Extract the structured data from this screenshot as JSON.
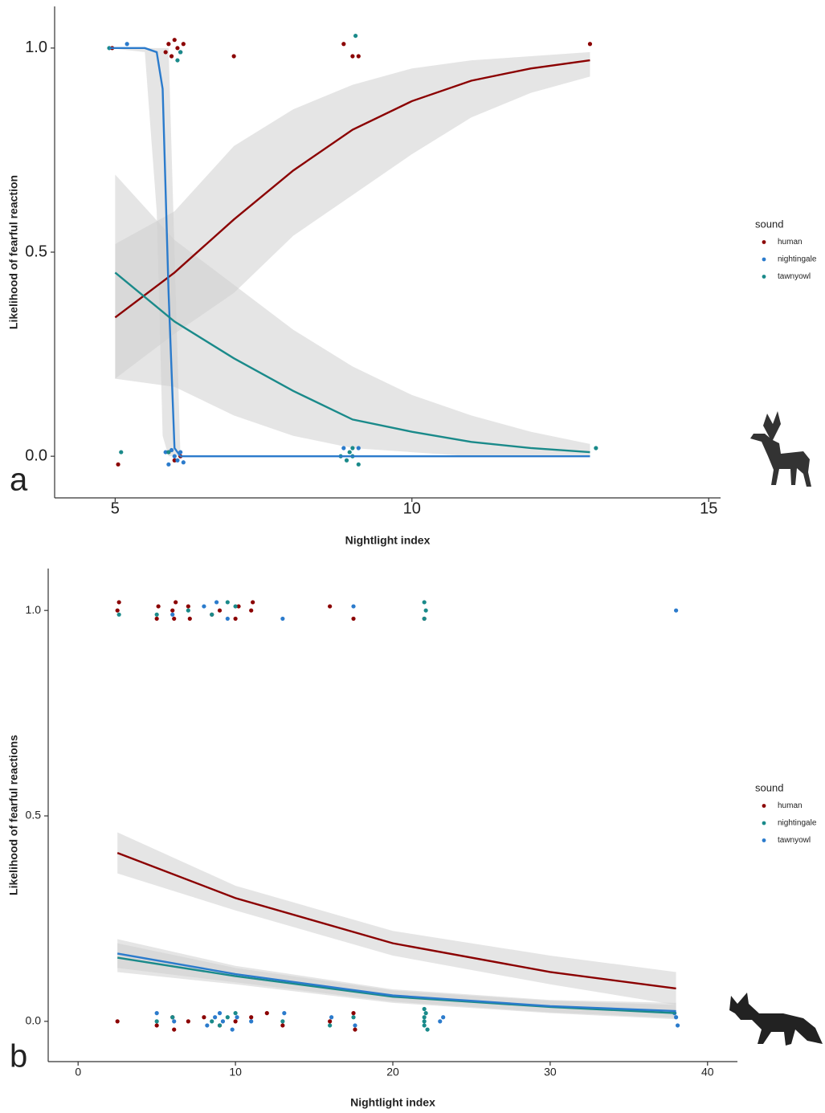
{
  "chart_data": [
    {
      "type": "line",
      "panel_label": "a",
      "x_label": "Nightlight index",
      "y_label": "Likelihood of fearful reaction",
      "legend_title": "sound",
      "xlim": [
        3.98,
        15.2
      ],
      "ylim": [
        -0.102,
        1.102
      ],
      "xticks": [
        5,
        10,
        15
      ],
      "yticks": [
        {
          "value": 0,
          "label": "0.0"
        },
        {
          "value": 0.5,
          "label": "0.5"
        },
        {
          "value": 1,
          "label": "1.0"
        }
      ],
      "series": [
        {
          "name": "human",
          "color": "#8b0000",
          "x": [
            5,
            6,
            7,
            8,
            9,
            10,
            11,
            12,
            13
          ],
          "values": [
            0.34,
            0.45,
            0.58,
            0.7,
            0.8,
            0.87,
            0.92,
            0.95,
            0.97
          ],
          "lower": [
            0.19,
            0.3,
            0.4,
            0.54,
            0.64,
            0.74,
            0.83,
            0.89,
            0.93
          ],
          "upper": [
            0.52,
            0.6,
            0.76,
            0.85,
            0.91,
            0.95,
            0.97,
            0.98,
            0.99
          ],
          "points_x": [
            4.95,
            5.05,
            5.85,
            5.9,
            5.95,
            6.0,
            6.05,
            6.1,
            6.15,
            7.0,
            8.85,
            9.0,
            9.1,
            13.0,
            5.9,
            6.0,
            6.1
          ],
          "points_y": [
            1.0,
            -0.02,
            0.99,
            1.01,
            0.98,
            1.02,
            1.0,
            0.99,
            1.01,
            0.98,
            1.01,
            0.98,
            0.98,
            1.01,
            0.01,
            -0.01,
            0.0
          ]
        },
        {
          "name": "nightingale",
          "color": "#2b7bcc",
          "x": [
            4.9,
            5.5,
            5.7,
            5.8,
            5.9,
            6.0,
            6.1,
            13
          ],
          "values": [
            1,
            1,
            0.99,
            0.9,
            0.4,
            0.02,
            0,
            0
          ],
          "lower": [
            1,
            0.99,
            0.6,
            0.05,
            0,
            0,
            0,
            0
          ],
          "upper": [
            1,
            1,
            1,
            1,
            1,
            0.5,
            0,
            0
          ],
          "points_x": [
            5.2,
            5.85,
            5.9,
            6.0,
            6.05,
            6.1,
            6.15,
            5.95,
            8.85,
            9.1,
            6.1
          ],
          "points_y": [
            1.01,
            0.01,
            -0.02,
            0.0,
            -0.01,
            0.01,
            -0.015,
            0.015,
            0.02,
            0.02,
            0.99
          ]
        },
        {
          "name": "tawnyowl",
          "color": "#1a8a8a",
          "x": [
            5,
            6,
            7,
            8,
            9,
            10,
            11,
            12,
            13
          ],
          "values": [
            0.45,
            0.33,
            0.24,
            0.16,
            0.09,
            0.06,
            0.035,
            0.02,
            0.01
          ],
          "lower": [
            0.19,
            0.17,
            0.1,
            0.05,
            0.02,
            0.01,
            0,
            0,
            0
          ],
          "upper": [
            0.69,
            0.53,
            0.42,
            0.31,
            0.22,
            0.15,
            0.1,
            0.06,
            0.03
          ],
          "points_x": [
            4.9,
            5.1,
            5.9,
            6.05,
            6.1,
            8.8,
            8.9,
            9.0,
            9.05,
            9.1,
            8.95,
            13.1,
            9.0
          ],
          "points_y": [
            1.0,
            0.01,
            0.01,
            0.97,
            0.99,
            0.0,
            -0.01,
            0.02,
            1.03,
            -0.02,
            0.01,
            0.02,
            0.0
          ]
        }
      ]
    },
    {
      "type": "line",
      "panel_label": "b",
      "x_label": "Nightlight index",
      "y_label": "Likelihood of fearful reactions",
      "legend_title": "sound",
      "xlim": [
        -1.9,
        41.9
      ],
      "ylim": [
        -0.098,
        1.102
      ],
      "xticks": [
        0,
        10,
        20,
        30,
        40
      ],
      "yticks": [
        {
          "value": 0,
          "label": "0.0"
        },
        {
          "value": 0.5,
          "label": "0.5"
        },
        {
          "value": 1,
          "label": "1.0"
        }
      ],
      "series": [
        {
          "name": "human",
          "color": "#8b0000",
          "x": [
            2.5,
            10,
            20,
            30,
            38
          ],
          "values": [
            0.41,
            0.3,
            0.19,
            0.12,
            0.08
          ],
          "lower": [
            0.36,
            0.27,
            0.16,
            0.09,
            0.04
          ],
          "upper": [
            0.46,
            0.33,
            0.22,
            0.16,
            0.12
          ],
          "points_x": [
            2.5,
            2.6,
            5,
            5.1,
            6,
            6.1,
            6.2,
            7,
            7.1,
            8.5,
            9,
            10,
            10.2,
            11,
            11.1,
            16,
            17.5,
            22,
            2.5,
            5,
            6,
            6.1,
            7,
            8,
            9,
            10,
            11,
            12,
            13,
            16,
            17.5,
            17.6
          ],
          "points_y": [
            1.0,
            1.02,
            0.98,
            1.01,
            1.0,
            0.98,
            1.02,
            1.01,
            0.98,
            0.99,
            1.0,
            0.98,
            1.01,
            1.0,
            1.02,
            1.01,
            0.98,
            0.98,
            0.0,
            -0.01,
            0.01,
            -0.02,
            0.0,
            0.01,
            -0.01,
            0.0,
            0.01,
            0.02,
            -0.01,
            0.0,
            0.02,
            -0.02
          ]
        },
        {
          "name": "nightingale",
          "color": "#1a8a8a",
          "x": [
            2.5,
            10,
            20,
            30,
            38
          ],
          "values": [
            0.155,
            0.11,
            0.06,
            0.035,
            0.02
          ],
          "lower": [
            0.12,
            0.09,
            0.045,
            0.02,
            0.005
          ],
          "upper": [
            0.19,
            0.13,
            0.075,
            0.05,
            0.04
          ],
          "points_x": [
            2.6,
            5,
            7,
            8.5,
            9.5,
            10,
            22,
            22.1,
            22,
            5,
            6,
            8.5,
            9,
            9.5,
            10,
            13,
            16,
            17.5,
            22,
            22.1,
            22.2,
            22,
            22,
            22
          ],
          "points_y": [
            0.99,
            0.99,
            1.0,
            0.99,
            1.02,
            1.01,
            1.02,
            1.0,
            0.98,
            0.0,
            0.01,
            0.0,
            -0.01,
            0.01,
            0.02,
            0.0,
            -0.01,
            0.01,
            0.0,
            0.02,
            -0.02,
            0.01,
            -0.01,
            0.03
          ]
        },
        {
          "name": "tawnyowl",
          "color": "#2b7bcc",
          "x": [
            2.5,
            10,
            20,
            30,
            38
          ],
          "values": [
            0.165,
            0.115,
            0.063,
            0.037,
            0.025
          ],
          "lower": [
            0.13,
            0.095,
            0.048,
            0.022,
            0.008
          ],
          "upper": [
            0.2,
            0.135,
            0.078,
            0.052,
            0.045
          ],
          "points_x": [
            6,
            8,
            8.8,
            9.5,
            13,
            17.5,
            38,
            5,
            6.1,
            8.2,
            8.7,
            9,
            9.2,
            9.8,
            10.1,
            11,
            13.1,
            16.1,
            17.6,
            23,
            23.2,
            38,
            38.1,
            37.9
          ],
          "points_y": [
            0.99,
            1.01,
            1.02,
            0.98,
            0.98,
            1.01,
            1.0,
            0.02,
            0.0,
            -0.01,
            0.01,
            0.02,
            0.0,
            -0.02,
            0.01,
            0.0,
            0.02,
            0.01,
            -0.01,
            0.0,
            0.01,
            0.01,
            -0.01,
            0.02
          ]
        }
      ]
    }
  ]
}
